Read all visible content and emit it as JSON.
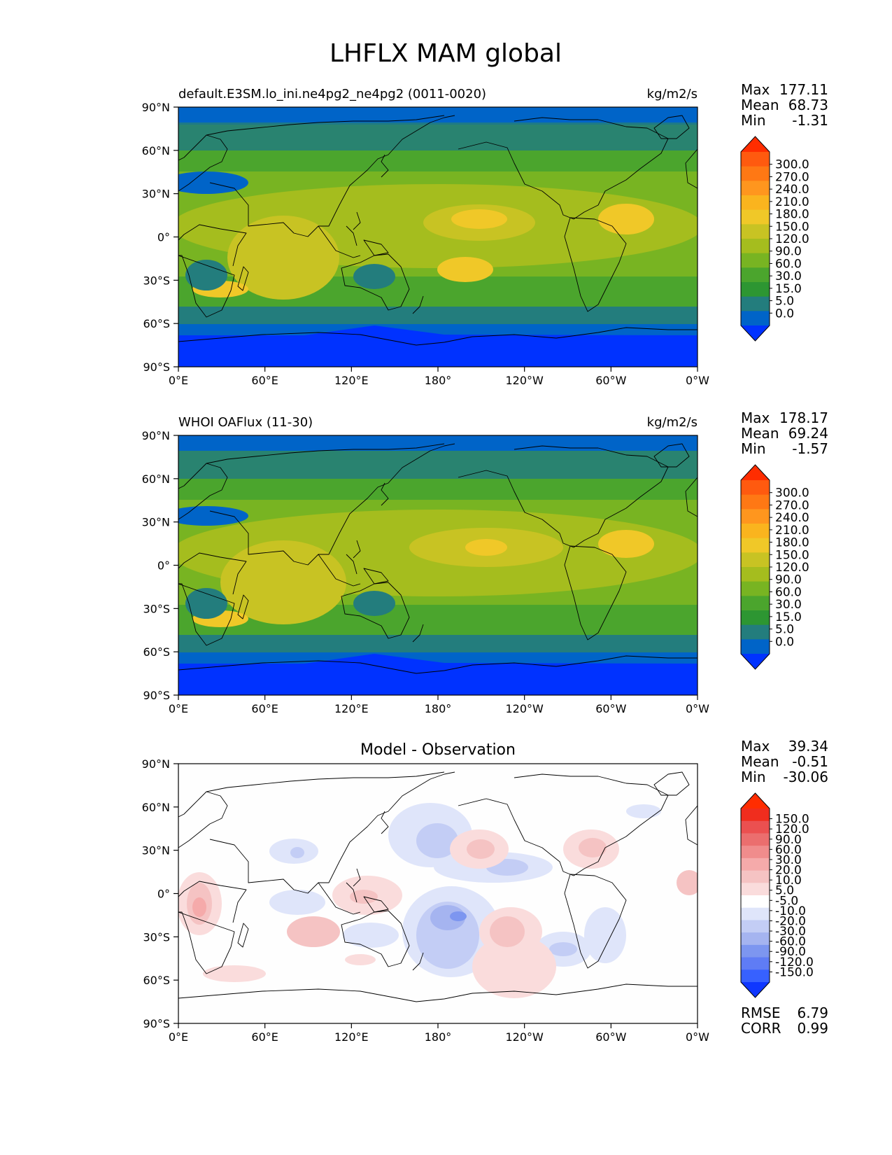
{
  "title": "LHFLX MAM global",
  "lat_ticks": [
    "90°N",
    "60°N",
    "30°N",
    "0°",
    "30°S",
    "60°S",
    "90°S"
  ],
  "lon_ticks": [
    "0°E",
    "60°E",
    "120°E",
    "180°",
    "120°W",
    "60°W",
    "0°W"
  ],
  "stat_labels": {
    "max": "Max",
    "mean": "Mean",
    "min": "Min",
    "rmse": "RMSE",
    "corr": "CORR"
  },
  "panels": [
    {
      "subtitle_left": "default.E3SM.lo_ini.ne4pg2_ne4pg2 (0011-0020)",
      "units": "kg/m2/s",
      "stats": {
        "max": "177.11",
        "mean": "68.73",
        "min": "-1.31"
      },
      "colorbar_levels": [
        "300.0",
        "270.0",
        "240.0",
        "210.0",
        "180.0",
        "150.0",
        "120.0",
        "90.0",
        "60.0",
        "30.0",
        "15.0",
        "5.0",
        "0.0"
      ]
    },
    {
      "subtitle_left": "WHOI OAFlux (11-30)",
      "units": "kg/m2/s",
      "stats": {
        "max": "178.17",
        "mean": "69.24",
        "min": "-1.57"
      },
      "colorbar_levels": [
        "300.0",
        "270.0",
        "240.0",
        "210.0",
        "180.0",
        "150.0",
        "120.0",
        "90.0",
        "60.0",
        "30.0",
        "15.0",
        "5.0",
        "0.0"
      ]
    },
    {
      "subtitle_center": "Model - Observation",
      "stats": {
        "max": "39.34",
        "mean": "-0.51",
        "min": "-30.06"
      },
      "colorbar_levels": [
        "150.0",
        "120.0",
        "90.0",
        "60.0",
        "30.0",
        "20.0",
        "10.0",
        "5.0",
        "-5.0",
        "-10.0",
        "-20.0",
        "-30.0",
        "-60.0",
        "-90.0",
        "-120.0",
        "-150.0"
      ],
      "rmse": "6.79",
      "corr": "0.99"
    }
  ],
  "colors": {
    "flux_scale": [
      "#0032ff",
      "#0064c8",
      "#237d7d",
      "#2d9632",
      "#4ba52d",
      "#78b422",
      "#a5bd1e",
      "#c8c323",
      "#f0c828",
      "#fab41e",
      "#ff961e",
      "#ff7814",
      "#ff5a0f",
      "#ff2d00"
    ],
    "diff_scale": [
      "#0f37ff",
      "#3761ff",
      "#5f7cf5",
      "#7d96f0",
      "#a5b4f0",
      "#c3cdf5",
      "#dfe5fa",
      "#ffffff",
      "#fadcdc",
      "#f5c3c3",
      "#f5aaaa",
      "#f08c8c",
      "#eb6e6e",
      "#eb5050",
      "#f02d1e",
      "#ff2d00"
    ]
  }
}
